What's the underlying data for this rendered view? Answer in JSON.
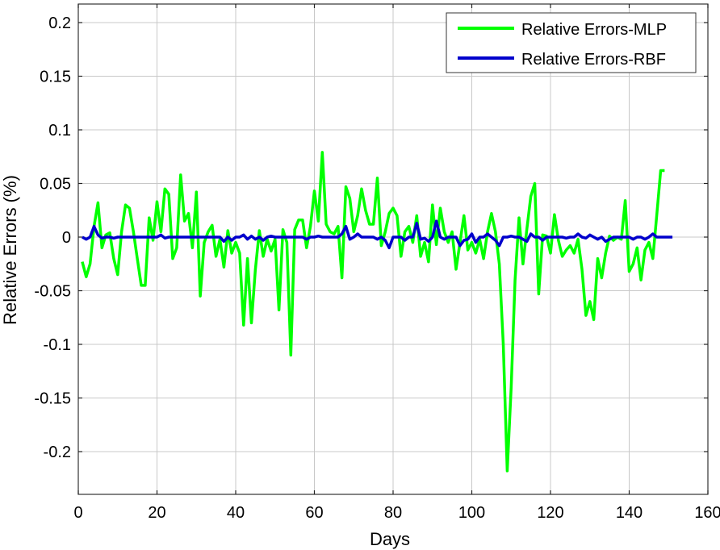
{
  "chart_data": {
    "type": "line",
    "title": "",
    "xlabel": "Days",
    "ylabel": "Relative Errors (%)",
    "xlim": [
      0,
      160
    ],
    "ylim": [
      -0.25,
      0.22
    ],
    "grid": true,
    "legend_position": "upper right",
    "xticks": [
      0,
      20,
      40,
      60,
      80,
      100,
      120,
      140,
      160
    ],
    "xtick_labels": [
      "0",
      "20",
      "40",
      "60",
      "80",
      "100",
      "120",
      "140",
      "160"
    ],
    "yticks": [
      0.2,
      0.15,
      0.1,
      0.05,
      0,
      -0.05,
      -0.1,
      -0.15,
      -0.2
    ],
    "ytick_labels": [
      "0.2",
      "0.15",
      "0.1",
      "0.05",
      "0",
      "-0.05",
      "-0.1",
      "-0.15",
      "-0.2"
    ],
    "x": [
      1,
      2,
      3,
      4,
      5,
      6,
      7,
      8,
      9,
      10,
      11,
      12,
      13,
      14,
      15,
      16,
      17,
      18,
      19,
      20,
      21,
      22,
      23,
      24,
      25,
      26,
      27,
      28,
      29,
      30,
      31,
      32,
      33,
      34,
      35,
      36,
      37,
      38,
      39,
      40,
      41,
      42,
      43,
      44,
      45,
      46,
      47,
      48,
      49,
      50,
      51,
      52,
      53,
      54,
      55,
      56,
      57,
      58,
      59,
      60,
      61,
      62,
      63,
      64,
      65,
      66,
      67,
      68,
      69,
      70,
      71,
      72,
      73,
      74,
      75,
      76,
      77,
      78,
      79,
      80,
      81,
      82,
      83,
      84,
      85,
      86,
      87,
      88,
      89,
      90,
      91,
      92,
      93,
      94,
      95,
      96,
      97,
      98,
      99,
      100,
      101,
      102,
      103,
      104,
      105,
      106,
      107,
      108,
      109,
      110,
      111,
      112,
      113,
      114,
      115,
      116,
      117,
      118,
      119,
      120,
      121,
      122,
      123,
      124,
      125,
      126,
      127,
      128,
      129,
      130,
      131,
      132,
      133,
      134,
      135,
      136,
      137,
      138,
      139,
      140,
      141,
      142,
      143,
      144,
      145,
      146,
      147,
      148,
      149,
      150,
      151
    ],
    "series": [
      {
        "name": "Relative Errors-MLP",
        "color": "#00ff00",
        "values": [
          -0.023,
          -0.037,
          -0.025,
          0.01,
          0.032,
          -0.01,
          0.002,
          0.004,
          -0.02,
          -0.035,
          0.005,
          0.03,
          0.027,
          0.005,
          -0.02,
          -0.045,
          -0.045,
          0.018,
          -0.003,
          0.033,
          0.005,
          0.045,
          0.04,
          -0.02,
          -0.01,
          0.058,
          0.015,
          0.022,
          -0.01,
          0.042,
          -0.055,
          -0.005,
          0.005,
          0.011,
          -0.018,
          -0.002,
          -0.028,
          0.006,
          -0.015,
          -0.005,
          -0.015,
          -0.082,
          -0.02,
          -0.08,
          -0.03,
          0.006,
          -0.018,
          -0.002,
          -0.013,
          -0.002,
          -0.068,
          0.007,
          -0.005,
          -0.11,
          0.007,
          0.016,
          0.016,
          -0.01,
          0.01,
          0.043,
          0.015,
          0.079,
          0.012,
          0.005,
          0.003,
          0.01,
          -0.038,
          0.047,
          0.036,
          0.005,
          0.02,
          0.045,
          0.025,
          0.012,
          0.012,
          0.055,
          -0.008,
          0.005,
          0.022,
          0.027,
          0.02,
          -0.018,
          0.005,
          0.01,
          -0.005,
          0.02,
          -0.018,
          -0.005,
          -0.023,
          0.03,
          -0.007,
          0.027,
          0.005,
          -0.005,
          0.005,
          -0.03,
          -0.005,
          0.02,
          -0.012,
          -0.005,
          -0.015,
          -0.002,
          -0.02,
          0.005,
          0.022,
          0.005,
          -0.025,
          -0.1,
          -0.218,
          -0.14,
          -0.04,
          0.018,
          -0.025,
          0.008,
          0.038,
          0.05,
          -0.053,
          0.002,
          0.001,
          -0.015,
          0.021,
          -0.003,
          -0.018,
          -0.012,
          -0.008,
          -0.015,
          -0.002,
          -0.03,
          -0.073,
          -0.06,
          -0.077,
          -0.02,
          -0.038,
          -0.015,
          0.001,
          -0.003,
          0.0,
          -0.002,
          0.034,
          -0.032,
          -0.025,
          -0.01,
          -0.04,
          -0.012,
          -0.005,
          -0.02,
          0.02,
          0.062,
          0.062
        ]
      },
      {
        "name": "Relative Errors-RBF",
        "color": "#0000cc",
        "values": [
          0.0,
          -0.002,
          0.0,
          0.01,
          0.002,
          -0.001,
          0.0,
          0.0,
          -0.001,
          0.0,
          0.0,
          0.0,
          0.0,
          0.0,
          0.0,
          0.0,
          0.0,
          0.0,
          0.0,
          0.0,
          0.002,
          -0.001,
          0.0,
          0.0,
          0.0,
          0.0,
          0.0,
          0.0,
          0.0,
          0.0,
          0.0,
          0.0,
          0.0,
          0.0,
          0.0,
          0.0,
          -0.004,
          0.0,
          -0.003,
          0.0,
          0.0,
          0.002,
          -0.002,
          0.001,
          -0.002,
          0.0,
          -0.003,
          0.0,
          0.001,
          0.0,
          0.0,
          0.0,
          0.0,
          0.0,
          0.0,
          0.0,
          0.0,
          -0.002,
          0.0,
          0.0,
          0.001,
          0.0,
          0.0,
          0.0,
          0.0,
          0.0,
          0.003,
          0.01,
          -0.002,
          0.0,
          0.003,
          0.0,
          0.0,
          0.0,
          0.0,
          -0.002,
          0.0,
          -0.003,
          -0.01,
          0.0,
          0.0,
          0.0,
          -0.003,
          0.0,
          0.0,
          0.013,
          -0.002,
          -0.001,
          -0.004,
          0.0,
          0.015,
          0.0,
          -0.002,
          0.0,
          0.0,
          0.0,
          -0.008,
          -0.003,
          -0.002,
          0.003,
          -0.005,
          0.0,
          0.0,
          0.003,
          0.0,
          -0.003,
          -0.008,
          0.0,
          0.0,
          0.001,
          0.0,
          0.0,
          -0.002,
          -0.004,
          0.003,
          0.0,
          0.0,
          -0.003,
          0.0,
          0.0,
          0.0,
          0.0,
          0.0,
          -0.001,
          0.0,
          0.0,
          0.003,
          0.0,
          -0.001,
          0.002,
          0.0,
          -0.002,
          0.0,
          -0.004,
          -0.002,
          0.0,
          0.0,
          0.0,
          0.0,
          0.0,
          -0.002,
          0.0,
          0.0,
          -0.002,
          0.0,
          0.003,
          0.0,
          0.0,
          0.0,
          0.0,
          0.0
        ]
      }
    ],
    "legend": [
      "Relative Errors-MLP",
      "Relative Errors-RBF"
    ]
  }
}
